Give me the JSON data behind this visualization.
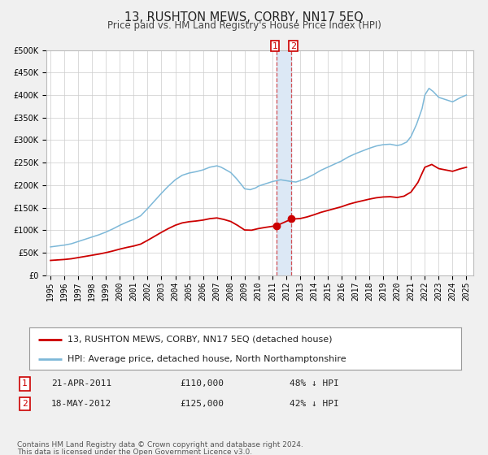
{
  "title": "13, RUSHTON MEWS, CORBY, NN17 5EQ",
  "subtitle": "Price paid vs. HM Land Registry's House Price Index (HPI)",
  "ylim": [
    0,
    500000
  ],
  "yticks": [
    0,
    50000,
    100000,
    150000,
    200000,
    250000,
    300000,
    350000,
    400000,
    450000,
    500000
  ],
  "xlim_start": 1994.7,
  "xlim_end": 2025.5,
  "xticks": [
    1995,
    1996,
    1997,
    1998,
    1999,
    2000,
    2001,
    2002,
    2003,
    2004,
    2005,
    2006,
    2007,
    2008,
    2009,
    2010,
    2011,
    2012,
    2013,
    2014,
    2015,
    2016,
    2017,
    2018,
    2019,
    2020,
    2021,
    2022,
    2023,
    2024,
    2025
  ],
  "hpi_color": "#7db8d8",
  "price_color": "#cc0000",
  "marker_color": "#cc0000",
  "vline1_x": 2011.3,
  "vline2_x": 2012.38,
  "vline_color": "#cc0000",
  "vshade_color": "#dce8f5",
  "sale1_x": 2011.3,
  "sale1_y": 110000,
  "sale2_x": 2012.38,
  "sale2_y": 125000,
  "legend_label_price": "13, RUSHTON MEWS, CORBY, NN17 5EQ (detached house)",
  "legend_label_hpi": "HPI: Average price, detached house, North Northamptonshire",
  "table_row1": [
    "1",
    "21-APR-2011",
    "£110,000",
    "48% ↓ HPI"
  ],
  "table_row2": [
    "2",
    "18-MAY-2012",
    "£125,000",
    "42% ↓ HPI"
  ],
  "footnote1": "Contains HM Land Registry data © Crown copyright and database right 2024.",
  "footnote2": "This data is licensed under the Open Government Licence v3.0.",
  "bg_color": "#f0f0f0",
  "plot_bg_color": "#ffffff",
  "grid_color": "#cccccc",
  "title_fontsize": 10.5,
  "subtitle_fontsize": 8.5,
  "tick_fontsize": 7,
  "legend_fontsize": 8,
  "table_fontsize": 8,
  "footnote_fontsize": 6.5
}
